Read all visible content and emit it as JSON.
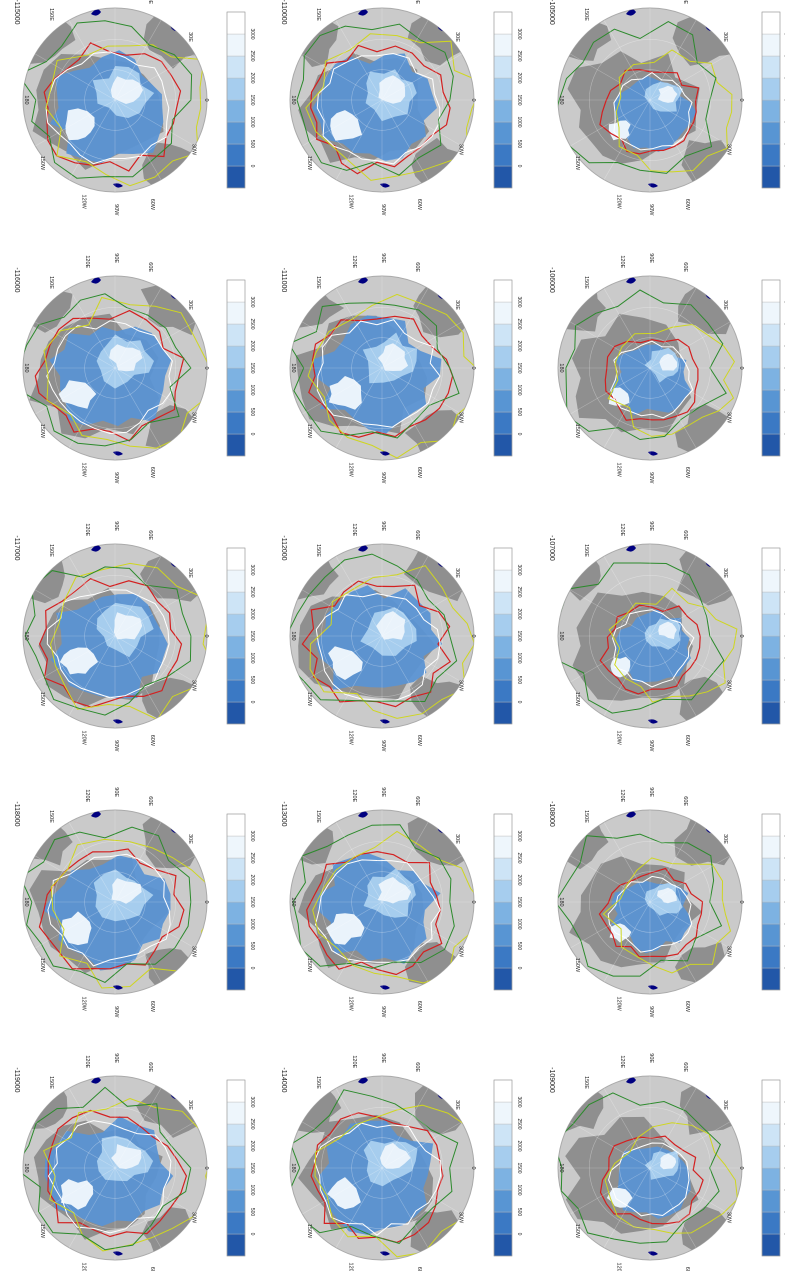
{
  "colorbar": {
    "ticks": [
      "0",
      "500",
      "1000",
      "1500",
      "2000",
      "2500",
      "3000"
    ],
    "colors": [
      "#2257a8",
      "#3b79c4",
      "#5895d3",
      "#7db2e2",
      "#a6cdee",
      "#cde4f6",
      "#eef6fc",
      "#ffffff"
    ]
  },
  "map_labels": {
    "e120": "120E",
    "e90": "90E",
    "e60": "60E",
    "e150": "150E",
    "e30": "30E",
    "d180": "180",
    "d0": "0",
    "w150": "150W",
    "w30": "30W",
    "w120": "120W",
    "w90": "90W",
    "w60": "60W"
  },
  "colors": {
    "ocean": "#cacaca",
    "land": "#8f8f8f",
    "ice": "#5b93d3",
    "ice_high": "#eaf3fb",
    "sea_ice": "#000080",
    "contour_red": "#d32020",
    "contour_green": "#2c8a2c",
    "contour_yellow": "#cfd620",
    "contour_white": "#ffffff"
  },
  "panels": [
    {
      "title": "-115000",
      "has_colorbar_labels": true
    },
    {
      "title": "-110000",
      "has_colorbar_labels": true
    },
    {
      "title": "-105000",
      "has_colorbar_labels": false
    },
    {
      "title": "-116000",
      "has_colorbar_labels": true
    },
    {
      "title": "-111000",
      "has_colorbar_labels": true
    },
    {
      "title": "-106000",
      "has_colorbar_labels": false
    },
    {
      "title": "-117000",
      "has_colorbar_labels": true
    },
    {
      "title": "-112000",
      "has_colorbar_labels": true
    },
    {
      "title": "-107000",
      "has_colorbar_labels": false
    },
    {
      "title": "-118000",
      "has_colorbar_labels": true
    },
    {
      "title": "-113000",
      "has_colorbar_labels": true
    },
    {
      "title": "-108000",
      "has_colorbar_labels": false
    },
    {
      "title": "-119000",
      "has_colorbar_labels": true
    },
    {
      "title": "-114000",
      "has_colorbar_labels": true
    },
    {
      "title": "-109000",
      "has_colorbar_labels": false
    }
  ]
}
